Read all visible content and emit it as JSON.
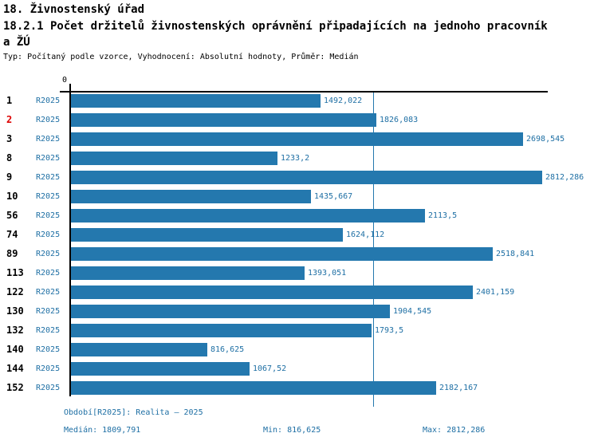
{
  "header": {
    "section_title": "18. Živnostenský úřad",
    "chart_title_line1": "18.2.1 Počet držitelů živnostenských oprávnění připadajících na jednoho pracovník",
    "chart_title_line2": "a ŽÚ",
    "meta": "Typ: Počítaný podle vzorce, Vyhodnocení: Absolutní hodnoty, Průměr: Medián"
  },
  "chart": {
    "zero_label": "0",
    "rows": [
      {
        "id": "1",
        "period": "R2025",
        "value": 1492.022,
        "value_label": "1492,022",
        "highlight": false
      },
      {
        "id": "2",
        "period": "R2025",
        "value": 1826.083,
        "value_label": "1826,083",
        "highlight": true
      },
      {
        "id": "3",
        "period": "R2025",
        "value": 2698.545,
        "value_label": "2698,545",
        "highlight": false
      },
      {
        "id": "8",
        "period": "R2025",
        "value": 1233.2,
        "value_label": "1233,2",
        "highlight": false
      },
      {
        "id": "9",
        "period": "R2025",
        "value": 2812.286,
        "value_label": "2812,286",
        "highlight": false
      },
      {
        "id": "10",
        "period": "R2025",
        "value": 1435.667,
        "value_label": "1435,667",
        "highlight": false
      },
      {
        "id": "56",
        "period": "R2025",
        "value": 2113.5,
        "value_label": "2113,5",
        "highlight": false
      },
      {
        "id": "74",
        "period": "R2025",
        "value": 1624.112,
        "value_label": "1624,112",
        "highlight": false
      },
      {
        "id": "89",
        "period": "R2025",
        "value": 2518.841,
        "value_label": "2518,841",
        "highlight": false
      },
      {
        "id": "113",
        "period": "R2025",
        "value": 1393.051,
        "value_label": "1393,051",
        "highlight": false
      },
      {
        "id": "122",
        "period": "R2025",
        "value": 2401.159,
        "value_label": "2401,159",
        "highlight": false
      },
      {
        "id": "130",
        "period": "R2025",
        "value": 1904.545,
        "value_label": "1904,545",
        "highlight": false
      },
      {
        "id": "132",
        "period": "R2025",
        "value": 1793.5,
        "value_label": "1793,5",
        "highlight": false
      },
      {
        "id": "140",
        "period": "R2025",
        "value": 816.625,
        "value_label": "816,625",
        "highlight": false
      },
      {
        "id": "144",
        "period": "R2025",
        "value": 1067.52,
        "value_label": "1067,52",
        "highlight": false
      },
      {
        "id": "152",
        "period": "R2025",
        "value": 2182.167,
        "value_label": "2182,167",
        "highlight": false
      }
    ]
  },
  "footer": {
    "period_label": "Období[R2025]: Realita – 2025",
    "median_label": "Medián: 1809,791",
    "min_label": "Min: 816,625",
    "max_label": "Max: 2812,286"
  },
  "colors": {
    "bar": "#2478AE",
    "blue_text": "#1E6FA4",
    "highlight_red": "#DD0000",
    "axis_black": "#000000"
  },
  "chart_data": {
    "type": "bar",
    "orientation": "horizontal",
    "title": "18.2.1 Počet držitelů živnostenských oprávnění připadajících na jednoho pracovníka ŽÚ",
    "subtitle": "Typ: Počítaný podle vzorce, Vyhodnocení: Absolutní hodnoty, Průměr: Medián",
    "categories": [
      "1",
      "2",
      "3",
      "8",
      "9",
      "10",
      "56",
      "74",
      "89",
      "113",
      "122",
      "130",
      "132",
      "140",
      "144",
      "152"
    ],
    "series": [
      {
        "name": "R2025",
        "values": [
          1492.022,
          1826.083,
          2698.545,
          1233.2,
          2812.286,
          1435.667,
          2113.5,
          1624.112,
          2518.841,
          1393.051,
          2401.159,
          1904.545,
          1793.5,
          816.625,
          1067.52,
          2182.167
        ]
      }
    ],
    "xlim": [
      0,
      2852
    ],
    "x_ticks": [
      0
    ],
    "grid": false,
    "legend_position": "none",
    "median": 1809.791,
    "min": 816.625,
    "max": 2812.286,
    "median_reference_line": true,
    "highlighted_category": "2"
  }
}
